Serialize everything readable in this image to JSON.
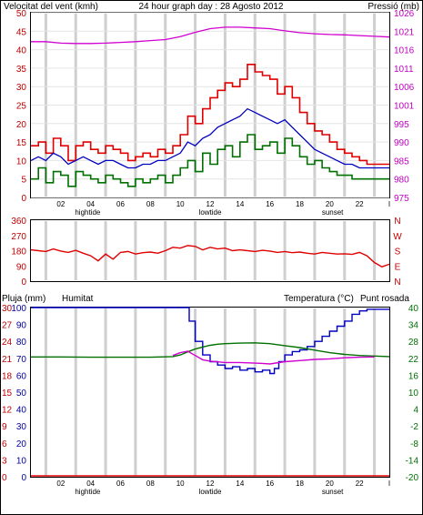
{
  "header": {
    "title": "24 hour graph day : 28 Agosto 2012",
    "left_label": "Velocitat del vent (kmh)",
    "right_label": "Pressió (mb)"
  },
  "x_axis": {
    "hour_ticks": [
      "02",
      "04",
      "06",
      "08",
      "10",
      "12",
      "14",
      "16",
      "18",
      "20",
      "22",
      "I"
    ],
    "events": [
      "hightide",
      "lowtide",
      "sunset"
    ]
  },
  "colors": {
    "wind_gust": "#e00000",
    "wind_avg": "#0000c0",
    "wind_low": "#007000",
    "pressure": "#d000d0",
    "direction": "#e00000",
    "humidity": "#0000c0",
    "temperature": "#007000",
    "dewpoint": "#d000d0",
    "rain": "#e00000",
    "label_red": "#c00000",
    "label_blue": "#0000a0",
    "label_green": "#007000",
    "label_magenta": "#c000c0"
  },
  "chart_data": [
    {
      "type": "line",
      "name": "wind",
      "x_unit": "hour",
      "ylim_left": [
        0,
        50
      ],
      "left_ticks": [
        "0",
        "5",
        "10",
        "15",
        "20",
        "25",
        "30",
        "35",
        "40",
        "45",
        "50"
      ],
      "ylim_right": [
        975,
        1026
      ],
      "right_ticks": [
        "975",
        "980",
        "985",
        "990",
        "995",
        "1001",
        "1006",
        "1011",
        "1016",
        "1021",
        "1026"
      ],
      "series": [
        {
          "key": "gust",
          "axis": "left",
          "x": [
            0,
            0.5,
            1,
            1.5,
            2,
            2.5,
            3,
            3.5,
            4,
            4.5,
            5,
            5.5,
            6,
            6.5,
            7,
            7.5,
            8,
            8.5,
            9,
            9.5,
            10,
            10.5,
            11,
            11.5,
            12,
            12.5,
            13,
            13.5,
            14,
            14.5,
            15,
            15.5,
            16,
            16.5,
            17,
            17.5,
            18,
            18.5,
            19,
            19.5,
            20,
            20.5,
            21,
            21.5,
            22,
            22.5,
            23,
            23.5,
            24
          ],
          "y": [
            14,
            15,
            12,
            16,
            14,
            10,
            14,
            15,
            13,
            12,
            14,
            13,
            12,
            10,
            11,
            12,
            11,
            13,
            12,
            14,
            17,
            22,
            20,
            24,
            27,
            29,
            31,
            30,
            32,
            36,
            34,
            33,
            32,
            28,
            30,
            27,
            23,
            20,
            18,
            17,
            15,
            13,
            12,
            11,
            10,
            9,
            9,
            9,
            9
          ]
        },
        {
          "key": "avg",
          "axis": "left",
          "x": [
            0,
            0.5,
            1,
            1.5,
            2,
            2.5,
            3,
            3.5,
            4,
            4.5,
            5,
            5.5,
            6,
            6.5,
            7,
            7.5,
            8,
            8.5,
            9,
            9.5,
            10,
            10.5,
            11,
            11.5,
            12,
            12.5,
            13,
            13.5,
            14,
            14.5,
            15,
            15.5,
            16,
            16.5,
            17,
            17.5,
            18,
            18.5,
            19,
            19.5,
            20,
            20.5,
            21,
            21.5,
            22,
            22.5,
            23,
            23.5,
            24
          ],
          "y": [
            10,
            11,
            10,
            12,
            11,
            9,
            10,
            11,
            10,
            9,
            10,
            10,
            9,
            8,
            8,
            9,
            9,
            10,
            10,
            11,
            12,
            15,
            14,
            16,
            17,
            19,
            20,
            21,
            22,
            24,
            23,
            22,
            21,
            20,
            21,
            19,
            17,
            15,
            13,
            12,
            11,
            10,
            9,
            9,
            8,
            8,
            8,
            8,
            8
          ]
        },
        {
          "key": "low",
          "axis": "left",
          "x": [
            0,
            0.5,
            1,
            1.5,
            2,
            2.5,
            3,
            3.5,
            4,
            4.5,
            5,
            5.5,
            6,
            6.5,
            7,
            7.5,
            8,
            8.5,
            9,
            9.5,
            10,
            10.5,
            11,
            11.5,
            12,
            12.5,
            13,
            13.5,
            14,
            14.5,
            15,
            15.5,
            16,
            16.5,
            17,
            17.5,
            18,
            18.5,
            19,
            19.5,
            20,
            20.5,
            21,
            21.5,
            22,
            22.5,
            23,
            23.5,
            24
          ],
          "y": [
            5,
            8,
            4,
            7,
            6,
            3,
            7,
            6,
            5,
            4,
            6,
            5,
            4,
            3,
            5,
            4,
            5,
            6,
            4,
            6,
            8,
            10,
            7,
            12,
            9,
            13,
            14,
            11,
            15,
            17,
            13,
            14,
            15,
            12,
            16,
            14,
            11,
            9,
            10,
            8,
            7,
            6,
            6,
            5,
            5,
            5,
            5,
            5,
            5
          ]
        },
        {
          "key": "pressure",
          "axis": "right",
          "x": [
            0,
            1,
            2,
            3,
            4,
            5,
            6,
            7,
            8,
            9,
            10,
            11,
            12,
            13,
            14,
            15,
            16,
            17,
            18,
            19,
            20,
            21,
            22,
            23,
            24
          ],
          "y": [
            1018,
            1018,
            1017.6,
            1017.5,
            1017.5,
            1017.6,
            1017.8,
            1018,
            1018.3,
            1018.6,
            1019.4,
            1020.6,
            1021.6,
            1022,
            1022,
            1021.8,
            1021.6,
            1021,
            1020.5,
            1020.2,
            1020,
            1019.9,
            1019.7,
            1019.5,
            1019.3
          ]
        }
      ]
    },
    {
      "type": "line",
      "name": "wind_direction",
      "x_unit": "hour",
      "ylim": [
        0,
        360
      ],
      "ticks": [
        "0",
        "90",
        "180",
        "270",
        "360"
      ],
      "compass": [
        "N",
        "W",
        "S",
        "E",
        "N"
      ],
      "series": [
        {
          "key": "direction",
          "x": [
            0,
            0.5,
            1,
            1.5,
            2,
            2.5,
            3,
            3.5,
            4,
            4.5,
            5,
            5.5,
            6,
            6.5,
            7,
            7.5,
            8,
            8.5,
            9,
            9.5,
            10,
            10.5,
            11,
            11.5,
            12,
            12.5,
            13,
            13.5,
            14,
            14.5,
            15,
            15.5,
            16,
            16.5,
            17,
            17.5,
            18,
            18.5,
            19,
            19.5,
            20,
            20.5,
            21,
            21.5,
            22,
            22.5,
            23,
            23.5,
            24
          ],
          "y": [
            185,
            180,
            175,
            190,
            178,
            170,
            182,
            165,
            150,
            120,
            160,
            130,
            170,
            175,
            160,
            168,
            172,
            165,
            180,
            200,
            195,
            210,
            205,
            185,
            200,
            190,
            195,
            180,
            185,
            180,
            175,
            182,
            178,
            170,
            175,
            168,
            172,
            165,
            160,
            170,
            165,
            160,
            162,
            158,
            170,
            150,
            110,
            85,
            100
          ]
        }
      ]
    },
    {
      "type": "line",
      "name": "humidity_temperature",
      "x_unit": "hour",
      "labels": {
        "rain": "Pluja (mm)",
        "humidity": "Humitat",
        "temperature": "Temperatura (°C)",
        "dewpoint": "Punt rosada"
      },
      "rain_ticks": [
        "0",
        "3",
        "6",
        "9",
        "12",
        "15",
        "18",
        "21",
        "24",
        "27",
        "30"
      ],
      "humidity_ticks": [
        "0",
        "10",
        "20",
        "30",
        "40",
        "50",
        "60",
        "70",
        "80",
        "90",
        "100"
      ],
      "temp_ticks": [
        "-20",
        "-14",
        "-8",
        "-2",
        "4",
        "10",
        "16",
        "22",
        "28",
        "34",
        "40"
      ],
      "ylim_humidity": [
        0,
        100
      ],
      "ylim_temp": [
        -20,
        40
      ],
      "ylim_rain": [
        0,
        30
      ],
      "series": [
        {
          "key": "humidity",
          "x": [
            0,
            2,
            4,
            6,
            8,
            9.5,
            10.2,
            10.6,
            11,
            11.5,
            12,
            12.5,
            13,
            13.5,
            14,
            14.5,
            15,
            15.5,
            16,
            16.3,
            16.6,
            17,
            17.5,
            18,
            18.5,
            19,
            19.5,
            20,
            20.5,
            21,
            21.5,
            22,
            22.5,
            23,
            23.5,
            24
          ],
          "y": [
            100,
            100,
            100,
            100,
            100,
            100,
            100,
            92,
            80,
            72,
            68,
            66,
            64,
            65,
            63,
            64,
            62,
            63,
            61,
            64,
            68,
            72,
            74,
            75,
            77,
            80,
            83,
            86,
            89,
            92,
            96,
            98,
            99,
            99,
            99,
            99
          ]
        },
        {
          "key": "temperature",
          "x": [
            0,
            2,
            4,
            6,
            8,
            9.5,
            10,
            10.5,
            11,
            11.5,
            12,
            12.5,
            13,
            14,
            15,
            16,
            17,
            18,
            19,
            20,
            21,
            22,
            23,
            24
          ],
          "y": [
            22.5,
            22.5,
            22.4,
            22.4,
            22.4,
            22.6,
            23.2,
            24.3,
            25.3,
            26,
            26.6,
            27,
            27.2,
            27.4,
            27.5,
            27.2,
            26.5,
            25.8,
            24.9,
            24,
            23.4,
            23,
            22.8,
            22.6
          ]
        },
        {
          "key": "dewpoint",
          "x": [
            9.5,
            10,
            10.5,
            11,
            11.5,
            12,
            13,
            14,
            15,
            15.5,
            16,
            17,
            18,
            19,
            20,
            21,
            22,
            23
          ],
          "y": [
            23,
            24,
            24.5,
            23,
            21.5,
            21,
            20.5,
            20.5,
            20.3,
            20.2,
            20,
            20.8,
            21.2,
            21.6,
            21.8,
            22.2,
            22.4,
            22.5
          ]
        },
        {
          "key": "rain",
          "x": [
            0,
            24
          ],
          "y": [
            0,
            0
          ]
        }
      ]
    }
  ]
}
